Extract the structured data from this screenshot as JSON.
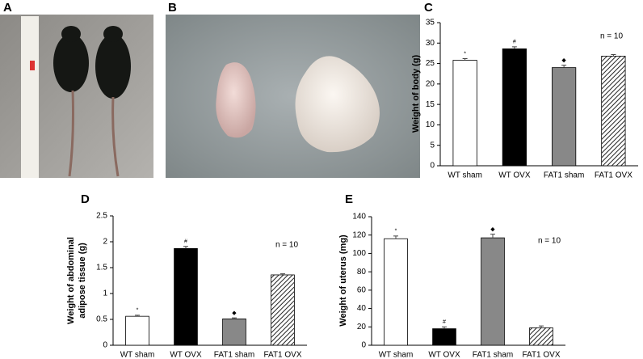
{
  "panel_labels": [
    "A",
    "B",
    "C",
    "D",
    "E"
  ],
  "chart_data": [
    {
      "type": "bar",
      "categories": [
        "WT sham",
        "WT OVX",
        "FAT1 sham",
        "FAT1 OVX"
      ],
      "values": [
        25.8,
        28.6,
        24,
        26.8
      ],
      "errors": [
        0.4,
        0.5,
        0.6,
        0.4
      ],
      "markers": [
        "*",
        "#",
        "◆",
        null
      ],
      "fills": [
        "#ffffff",
        "#000000",
        "#888888",
        "hatched"
      ],
      "y_label": "Weight of body (g)",
      "annotation": "n = 10",
      "ylim": [
        0,
        35
      ],
      "yticks": [
        0,
        5,
        10,
        15,
        20,
        25,
        30,
        35
      ]
    },
    {
      "type": "bar",
      "categories": [
        "WT sham",
        "WT OVX",
        "FAT1 sham",
        "FAT1 OVX"
      ],
      "values": [
        0.56,
        1.87,
        0.51,
        1.36
      ],
      "errors": [
        0.02,
        0.04,
        0.02,
        0.02
      ],
      "markers": [
        "*",
        "#",
        "◆",
        null
      ],
      "fills": [
        "#ffffff",
        "#000000",
        "#888888",
        "hatched"
      ],
      "y_label": [
        "Weight of abdominal",
        "adipose tissue (g)"
      ],
      "annotation": "n = 10",
      "ylim": [
        0,
        2.5
      ],
      "yticks": [
        0,
        0.5,
        1,
        1.5,
        2,
        2.5
      ]
    },
    {
      "type": "bar",
      "categories": [
        "WT sham",
        "WT OVX",
        "FAT1 sham",
        "FAT1 OVX"
      ],
      "values": [
        116,
        18,
        117,
        19
      ],
      "errors": [
        3,
        2,
        4,
        2
      ],
      "markers": [
        "*",
        "#",
        "◆",
        null
      ],
      "fills": [
        "#ffffff",
        "#000000",
        "#888888",
        "hatched"
      ],
      "y_label": "Weight of uterus (mg)",
      "annotation": "n = 10",
      "ylim": [
        0,
        140
      ],
      "yticks": [
        0,
        20,
        40,
        60,
        80,
        100,
        120,
        140
      ]
    }
  ]
}
